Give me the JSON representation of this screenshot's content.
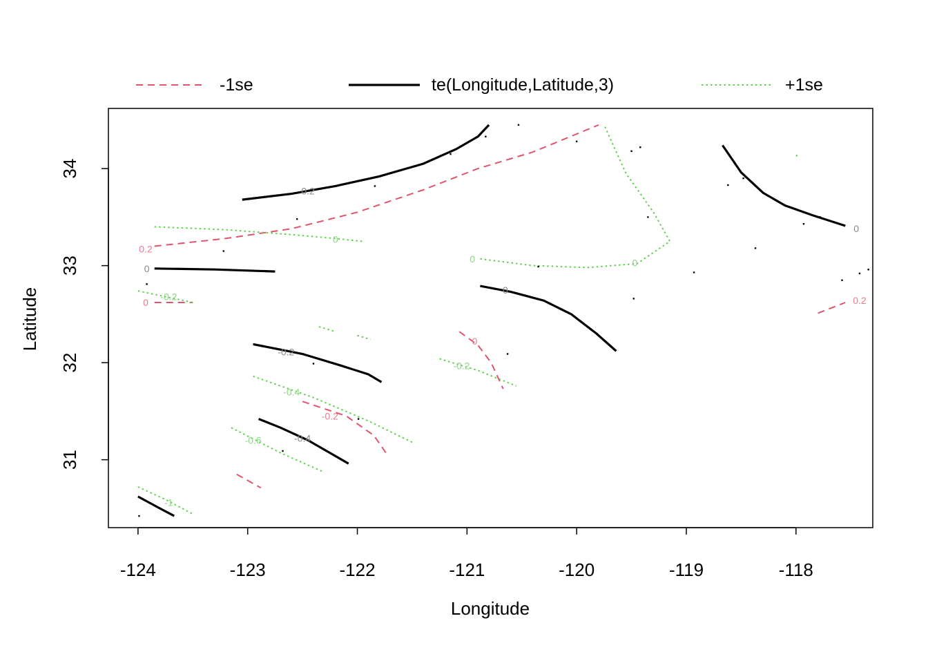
{
  "chart_data": {
    "type": "contour",
    "xlabel": "Longitude",
    "ylabel": "Latitude",
    "xlim": [
      -124.27,
      -117.3
    ],
    "ylim": [
      30.3,
      34.62
    ],
    "x_ticks": [
      -124,
      -123,
      -122,
      -121,
      -120,
      -119,
      -118
    ],
    "x_tick_labels": [
      "-124",
      "-123",
      "-122",
      "-121",
      "-120",
      "-119",
      "-118"
    ],
    "y_ticks": [
      31,
      32,
      33,
      34
    ],
    "y_tick_labels": [
      "31",
      "32",
      "33",
      "34"
    ],
    "legend_position": "top",
    "legend": [
      {
        "key": "minus",
        "label": "-1se",
        "color": "#DF536B",
        "dash": "dashed",
        "width": 2
      },
      {
        "key": "fit",
        "label": "te(Longitude,Latitude,3)",
        "color": "#000000",
        "dash": "solid",
        "width": 3.2
      },
      {
        "key": "plus",
        "label": "+1se",
        "color": "#61D04F",
        "dash": "dotted",
        "width": 2
      }
    ],
    "series": [
      {
        "key": "fit",
        "level": "0.2",
        "points": [
          [
            -123.05,
            33.68
          ],
          [
            -122.6,
            33.74
          ],
          [
            -122.2,
            33.82
          ],
          [
            -121.8,
            33.92
          ],
          [
            -121.4,
            34.05
          ],
          [
            -121.1,
            34.2
          ],
          [
            -120.9,
            34.33
          ],
          [
            -120.8,
            34.45
          ]
        ],
        "label_at": [
          -122.45,
          33.77
        ]
      },
      {
        "key": "fit",
        "level": "0",
        "points": [
          [
            -123.85,
            32.97
          ],
          [
            -123.3,
            32.96
          ],
          [
            -122.75,
            32.94
          ]
        ],
        "label_at": [
          -123.92,
          32.97
        ]
      },
      {
        "key": "fit",
        "level": "0",
        "points": [
          [
            -120.88,
            32.79
          ],
          [
            -120.6,
            32.73
          ],
          [
            -120.3,
            32.64
          ],
          [
            -120.05,
            32.5
          ],
          [
            -119.82,
            32.3
          ],
          [
            -119.64,
            32.12
          ]
        ],
        "label_at": [
          -120.65,
          32.75
        ]
      },
      {
        "key": "fit",
        "level": "0",
        "points": [
          [
            -118.67,
            34.24
          ],
          [
            -118.5,
            33.96
          ],
          [
            -118.3,
            33.75
          ],
          [
            -118.1,
            33.62
          ],
          [
            -117.85,
            33.52
          ],
          [
            -117.55,
            33.41
          ]
        ],
        "label_at": [
          -117.45,
          33.38
        ]
      },
      {
        "key": "fit",
        "level": "-0.2",
        "points": [
          [
            -122.95,
            32.19
          ],
          [
            -122.5,
            32.09
          ],
          [
            -122.15,
            31.97
          ],
          [
            -121.9,
            31.88
          ],
          [
            -121.78,
            31.8
          ]
        ],
        "label_at": [
          -122.65,
          32.11
        ]
      },
      {
        "key": "fit",
        "level": "-0.4",
        "points": [
          [
            -122.9,
            31.42
          ],
          [
            -122.7,
            31.33
          ],
          [
            -122.45,
            31.2
          ],
          [
            -122.25,
            31.07
          ],
          [
            -122.08,
            30.96
          ]
        ],
        "label_at": [
          -122.5,
          31.22
        ]
      },
      {
        "key": "fit",
        "level": "",
        "points": [
          [
            -124,
            30.62
          ],
          [
            -123.82,
            30.51
          ],
          [
            -123.67,
            30.42
          ]
        ]
      },
      {
        "key": "minus",
        "level": "0.2",
        "points": [
          [
            -123.85,
            33.2
          ],
          [
            -123.2,
            33.28
          ],
          [
            -122.6,
            33.38
          ],
          [
            -122.0,
            33.55
          ],
          [
            -121.4,
            33.78
          ],
          [
            -120.9,
            34.0
          ],
          [
            -120.4,
            34.17
          ],
          [
            -119.8,
            34.45
          ]
        ],
        "label_at": [
          -123.93,
          33.17
        ]
      },
      {
        "key": "minus",
        "level": "0",
        "points": [
          [
            -123.85,
            32.62
          ],
          [
            -123.5,
            32.62
          ]
        ],
        "label_at": [
          -123.93,
          32.62
        ]
      },
      {
        "key": "minus",
        "level": "0.2",
        "points": [
          [
            -117.8,
            32.51
          ],
          [
            -117.55,
            32.62
          ]
        ],
        "label_at": [
          -117.42,
          32.64
        ]
      },
      {
        "key": "minus",
        "level": "0",
        "points": [
          [
            -121.07,
            32.32
          ],
          [
            -120.9,
            32.18
          ],
          [
            -120.78,
            32.0
          ],
          [
            -120.67,
            31.73
          ]
        ],
        "label_at": [
          -120.93,
          32.22
        ]
      },
      {
        "key": "minus",
        "level": "-0.2",
        "points": [
          [
            -122.5,
            31.6
          ],
          [
            -122.1,
            31.45
          ],
          [
            -121.85,
            31.25
          ],
          [
            -121.72,
            31.04
          ]
        ],
        "label_at": [
          -122.25,
          31.45
        ]
      },
      {
        "key": "minus",
        "level": "",
        "points": [
          [
            -123.1,
            30.85
          ],
          [
            -122.88,
            30.71
          ]
        ]
      },
      {
        "key": "plus",
        "level": "0",
        "points": [
          [
            -123.85,
            33.4
          ],
          [
            -123.2,
            33.37
          ],
          [
            -122.6,
            33.32
          ],
          [
            -122.2,
            33.28
          ],
          [
            -121.95,
            33.25
          ]
        ],
        "label_at": [
          -122.2,
          33.27
        ]
      },
      {
        "key": "plus",
        "level": "0",
        "points": [
          [
            -120.88,
            33.07
          ],
          [
            -120.4,
            33.0
          ],
          [
            -119.9,
            32.98
          ],
          [
            -119.45,
            33.02
          ],
          [
            -119.15,
            33.25
          ],
          [
            -119.3,
            33.55
          ],
          [
            -119.55,
            33.95
          ],
          [
            -119.75,
            34.45
          ]
        ],
        "label_at": [
          -120.95,
          33.07
        ],
        "label_at_2": [
          -119.47,
          33.03
        ]
      },
      {
        "key": "plus",
        "level": "-0.2",
        "points": [
          [
            -124,
            32.74
          ],
          [
            -123.5,
            32.62
          ]
        ],
        "label_at": [
          -123.72,
          32.68
        ]
      },
      {
        "key": "plus",
        "level": "",
        "points": [
          [
            -122.35,
            32.37
          ],
          [
            -122.2,
            32.32
          ]
        ]
      },
      {
        "key": "plus",
        "level": "",
        "points": [
          [
            -122.0,
            32.28
          ],
          [
            -121.88,
            32.24
          ]
        ]
      },
      {
        "key": "plus",
        "level": "-0.2",
        "points": [
          [
            -121.25,
            32.04
          ],
          [
            -120.9,
            31.92
          ],
          [
            -120.55,
            31.76
          ]
        ],
        "label_at": [
          -121.05,
          31.97
        ]
      },
      {
        "key": "plus",
        "level": "-0.4",
        "points": [
          [
            -122.95,
            31.86
          ],
          [
            -122.4,
            31.64
          ],
          [
            -121.9,
            31.4
          ],
          [
            -121.5,
            31.18
          ]
        ],
        "label_at": [
          -122.6,
          31.7
        ]
      },
      {
        "key": "plus",
        "level": "-0.6",
        "points": [
          [
            -123.15,
            31.33
          ],
          [
            -122.7,
            31.07
          ],
          [
            -122.3,
            30.87
          ]
        ],
        "label_at": [
          -122.95,
          31.2
        ]
      },
      {
        "key": "plus",
        "level": "-1",
        "points": [
          [
            -124,
            30.72
          ],
          [
            -123.75,
            30.59
          ],
          [
            -123.5,
            30.44
          ]
        ],
        "label_at": [
          -123.72,
          30.56
        ]
      },
      {
        "key": "plus",
        "level": "",
        "points": [
          [
            -118.0,
            34.14
          ],
          [
            -117.98,
            34.12
          ]
        ]
      }
    ],
    "observation_points": [
      [
        -123.92,
        32.81
      ],
      [
        -123.22,
        33.15
      ],
      [
        -122.55,
        33.48
      ],
      [
        -121.84,
        33.82
      ],
      [
        -121.15,
        34.15
      ],
      [
        -120.83,
        34.33
      ],
      [
        -120.53,
        34.45
      ],
      [
        -120.0,
        34.28
      ],
      [
        -119.5,
        34.18
      ],
      [
        -119.42,
        34.22
      ],
      [
        -119.35,
        33.5
      ],
      [
        -118.62,
        33.83
      ],
      [
        -118.48,
        33.9
      ],
      [
        -118.37,
        33.18
      ],
      [
        -117.93,
        33.43
      ],
      [
        -117.78,
        33.5
      ],
      [
        -120.35,
        32.99
      ],
      [
        -119.48,
        32.66
      ],
      [
        -119.96,
        32.42
      ],
      [
        -120.63,
        32.09
      ],
      [
        -118.93,
        32.93
      ],
      [
        -117.58,
        32.85
      ],
      [
        -117.42,
        32.92
      ],
      [
        -117.34,
        32.96
      ],
      [
        -122.4,
        31.99
      ],
      [
        -121.99,
        31.42
      ],
      [
        -122.68,
        31.09
      ],
      [
        -123.99,
        30.42
      ]
    ]
  }
}
